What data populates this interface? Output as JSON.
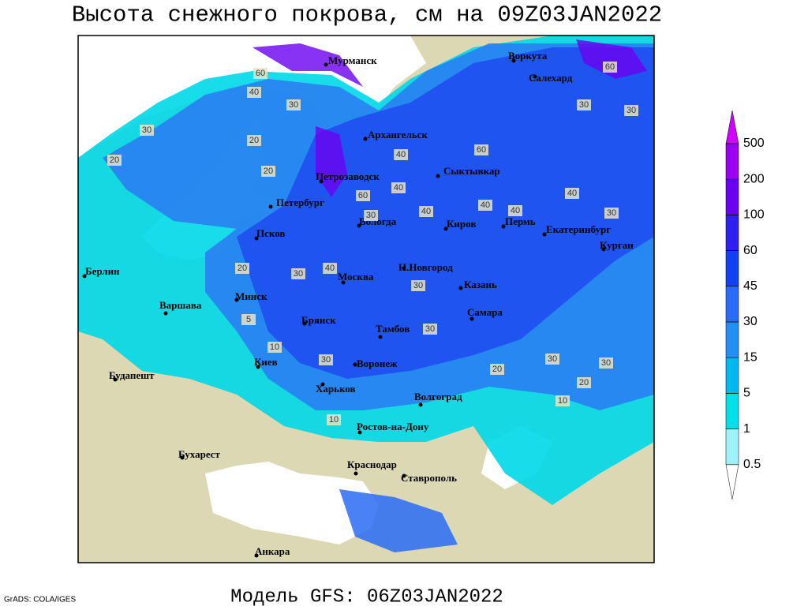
{
  "title": "Высота снежного покрова, см на 09Z03JAN2022",
  "footer": "Модель GFS: 06Z03JAN2022",
  "credit": "GrADS: COLA/IGES",
  "cities": [
    "Мурманск",
    "Архангельск",
    "Воркута",
    "Салехард",
    "Петрозаводск",
    "Сыктывкар",
    "Петербург",
    "Вологда",
    "Киров",
    "Пермь",
    "Екатеринбург",
    "Курган",
    "Псков",
    "Берлин",
    "Н.Новгород",
    "Казань",
    "Москва",
    "Минск",
    "Варшава",
    "Брянск",
    "Тамбов",
    "Самара",
    "Киев",
    "Воронеж",
    "Будапешт",
    "Харьков",
    "Волгоград",
    "Ростов-на-Дону",
    "Бухарест",
    "Краснодар",
    "Ставрополь",
    "Анкара"
  ],
  "contour_labels": [
    "60",
    "40",
    "30",
    "30",
    "20",
    "20",
    "20",
    "40",
    "60",
    "60",
    "40",
    "40",
    "60",
    "30",
    "30",
    "40",
    "30",
    "40",
    "30",
    "20",
    "30",
    "30",
    "10",
    "5",
    "30",
    "30",
    "30",
    "20",
    "10",
    "20",
    "10",
    "30",
    "40",
    "40"
  ],
  "legend": {
    "ticks": [
      0.5,
      1,
      5,
      15,
      30,
      45,
      60,
      100,
      200,
      500
    ],
    "colors": [
      "#ffffff",
      "#9ff2f8",
      "#00e0e8",
      "#00b8f0",
      "#2090f5",
      "#2a6cf5",
      "#1040f0",
      "#3020f0",
      "#6a00f0",
      "#9a00f0",
      "#d000ff"
    ]
  }
}
